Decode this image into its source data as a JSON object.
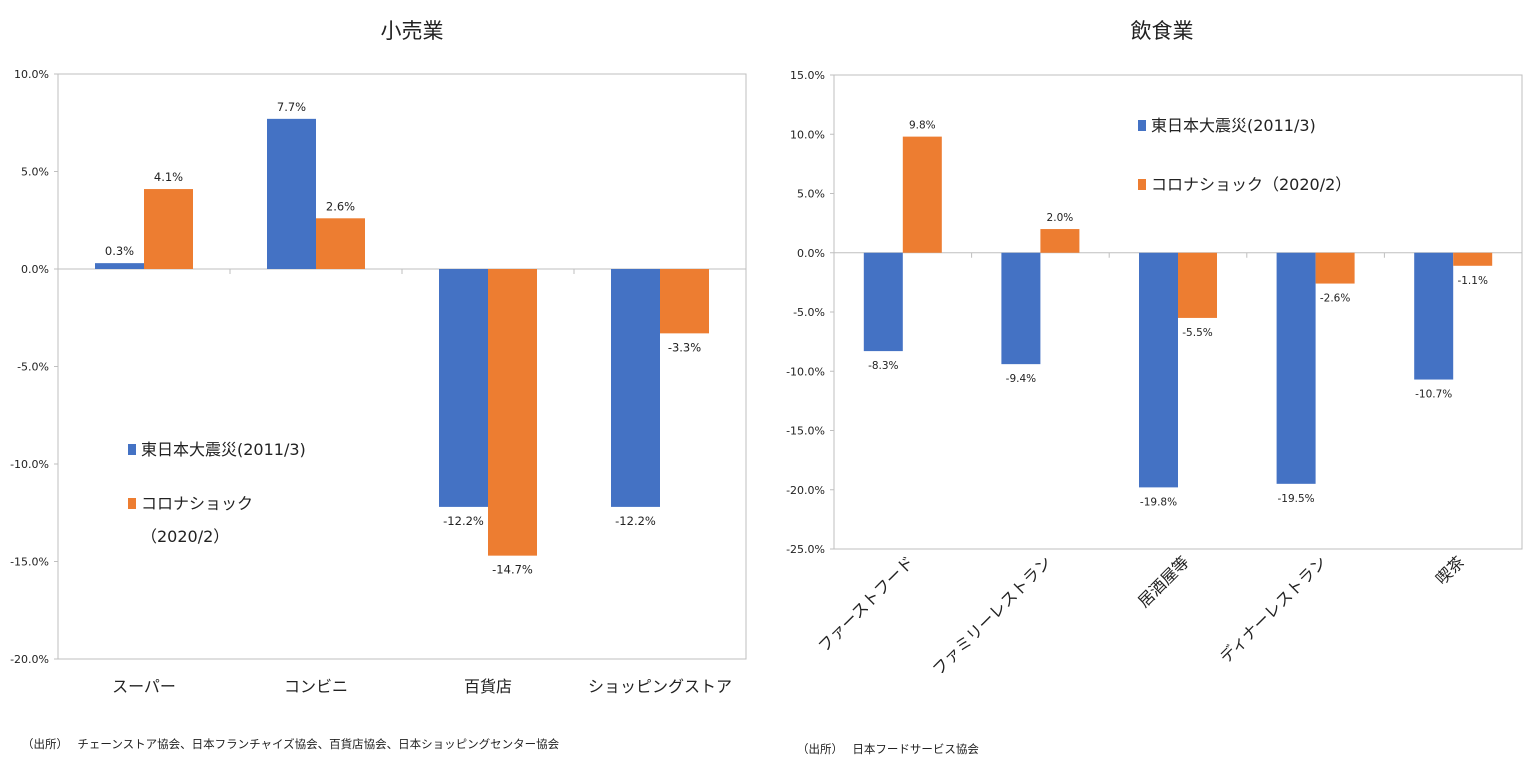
{
  "colors": {
    "series1": "#4472c4",
    "series2": "#ed7d31",
    "axis": "#bfbfbf"
  },
  "chart_data": [
    {
      "type": "bar",
      "title": "小売業",
      "categories": [
        "スーパー",
        "コンビニ",
        "百貨店",
        "ショッピングストア"
      ],
      "series": [
        {
          "name": "東日本大震災(2011/3)",
          "values": [
            0.3,
            7.7,
            -12.2,
            -12.2
          ]
        },
        {
          "name": "コロナショック",
          "values": [
            4.1,
            2.6,
            -14.7,
            -3.3
          ]
        }
      ],
      "data_labels": [
        [
          "0.3%",
          "7.7%",
          "-12.2%",
          "-12.2%"
        ],
        [
          "4.1%",
          "2.6%",
          "-14.7%",
          "-3.3%"
        ]
      ],
      "ylim": [
        -20,
        10
      ],
      "yticks": [
        "10.0%",
        "5.0%",
        "0.0%",
        "-5.0%",
        "-10.0%",
        "-15.0%",
        "-20.0%"
      ],
      "legend_line2_extra": "（2020/2）",
      "legend_placement": "lower-left",
      "grid": false,
      "source": "（出所）　 チェーンストア協会、日本フランチャイズ協会、百貨店協会、日本ショッピングセンター協会"
    },
    {
      "type": "bar",
      "title": "飲食業",
      "categories": [
        "ファーストフード",
        "ファミリーレストラン",
        "居酒屋等",
        "ディナーレストラン",
        "喫茶"
      ],
      "series": [
        {
          "name": "東日本大震災(2011/3)",
          "values": [
            -8.3,
            -9.4,
            -19.8,
            -19.5,
            -10.7
          ]
        },
        {
          "name": "コロナショック（2020/2）",
          "values": [
            9.8,
            2.0,
            -5.5,
            -2.6,
            -1.1
          ]
        }
      ],
      "data_labels": [
        [
          "-8.3%",
          "-9.4%",
          "-19.8%",
          "-19.5%",
          "-10.7%"
        ],
        [
          "9.8%",
          "2.0%",
          "-5.5%",
          "-2.6%",
          "-1.1%"
        ]
      ],
      "ylim": [
        -25,
        15
      ],
      "yticks": [
        "15.0%",
        "10.0%",
        "5.0%",
        "0.0%",
        "-5.0%",
        "-10.0%",
        "-15.0%",
        "-20.0%",
        "-25.0%"
      ],
      "legend_placement": "upper-right",
      "grid": false,
      "source": "（出所）　 日本フードサービス協会"
    }
  ]
}
